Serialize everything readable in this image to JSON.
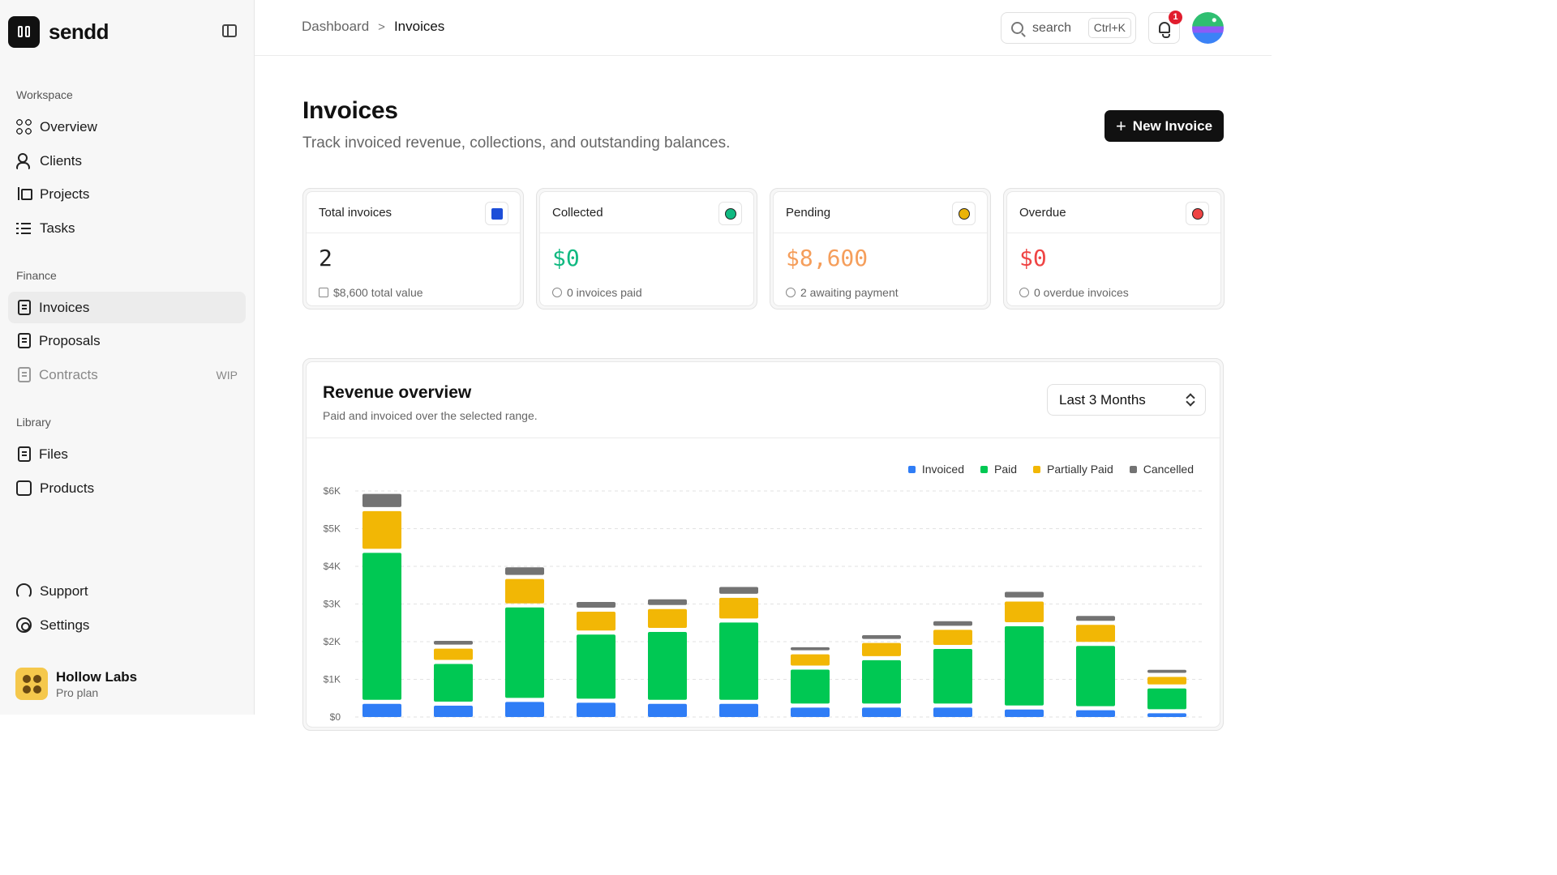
{
  "brand": {
    "name": "sendd"
  },
  "sidebar": {
    "sections": [
      {
        "label": "Workspace",
        "items": [
          {
            "label": "Overview",
            "icon": "grid-icon"
          },
          {
            "label": "Clients",
            "icon": "users-icon"
          },
          {
            "label": "Projects",
            "icon": "project-tree-icon"
          },
          {
            "label": "Tasks",
            "icon": "checklist-icon"
          }
        ]
      },
      {
        "label": "Finance",
        "items": [
          {
            "label": "Invoices",
            "icon": "invoice-icon",
            "active": true
          },
          {
            "label": "Proposals",
            "icon": "proposal-icon"
          },
          {
            "label": "Contracts",
            "icon": "contract-icon",
            "tag": "WIP",
            "disabled": true
          }
        ]
      },
      {
        "label": "Library",
        "items": [
          {
            "label": "Files",
            "icon": "files-icon"
          },
          {
            "label": "Products",
            "icon": "products-icon"
          }
        ]
      }
    ],
    "bottom": [
      {
        "label": "Support",
        "icon": "headset-icon"
      },
      {
        "label": "Settings",
        "icon": "gear-icon"
      }
    ],
    "workspace": {
      "name": "Hollow Labs",
      "plan": "Pro plan"
    }
  },
  "header": {
    "breadcrumb": [
      "Dashboard",
      "Invoices"
    ],
    "search": {
      "placeholder": "search",
      "shortcut": "Ctrl+K"
    },
    "notifications": {
      "count": "1"
    }
  },
  "page": {
    "title": "Invoices",
    "subtitle": "Track invoiced revenue, collections, and outstanding balances.",
    "new_button": "New Invoice"
  },
  "stats": [
    {
      "label": "Total invoices",
      "value": "2",
      "foot": "$8,600 total value",
      "color": "#222222",
      "icon_color": "#1d4ed8"
    },
    {
      "label": "Collected",
      "value": "$0",
      "foot": "0 invoices paid",
      "color": "#10b981",
      "icon_color": "#10b981"
    },
    {
      "label": "Pending",
      "value": "$8,600",
      "foot": "2 awaiting payment",
      "color": "#f59e5b",
      "icon_color": "#eab308"
    },
    {
      "label": "Overdue",
      "value": "$0",
      "foot": "0 overdue invoices",
      "color": "#ef4444",
      "icon_color": "#ef4444"
    }
  ],
  "revenue": {
    "title": "Revenue overview",
    "subtitle": "Paid and invoiced over the selected range.",
    "range": "Last 3 Months"
  },
  "chart_data": {
    "type": "bar",
    "stacked": true,
    "y_ticks": [
      "$6K",
      "$5K",
      "$4K",
      "$3K",
      "$2K",
      "$1K",
      "$0"
    ],
    "ylim": [
      0,
      6000
    ],
    "grid": true,
    "legend_position": "top-right",
    "series": [
      {
        "name": "Invoiced",
        "color": "#2f7df6",
        "values": [
          350,
          300,
          400,
          380,
          350,
          350,
          250,
          250,
          250,
          200,
          180,
          100
        ]
      },
      {
        "name": "Paid",
        "color": "#00c853",
        "values": [
          3900,
          1000,
          2400,
          1700,
          1800,
          2050,
          900,
          1150,
          1450,
          2100,
          1600,
          550
        ]
      },
      {
        "name": "Partially Paid",
        "color": "#f2b705",
        "values": [
          1000,
          300,
          650,
          500,
          500,
          550,
          300,
          350,
          400,
          550,
          450,
          200
        ]
      },
      {
        "name": "Cancelled",
        "color": "#737373",
        "values": [
          350,
          100,
          200,
          150,
          150,
          180,
          80,
          100,
          120,
          150,
          130,
          80
        ]
      }
    ]
  }
}
